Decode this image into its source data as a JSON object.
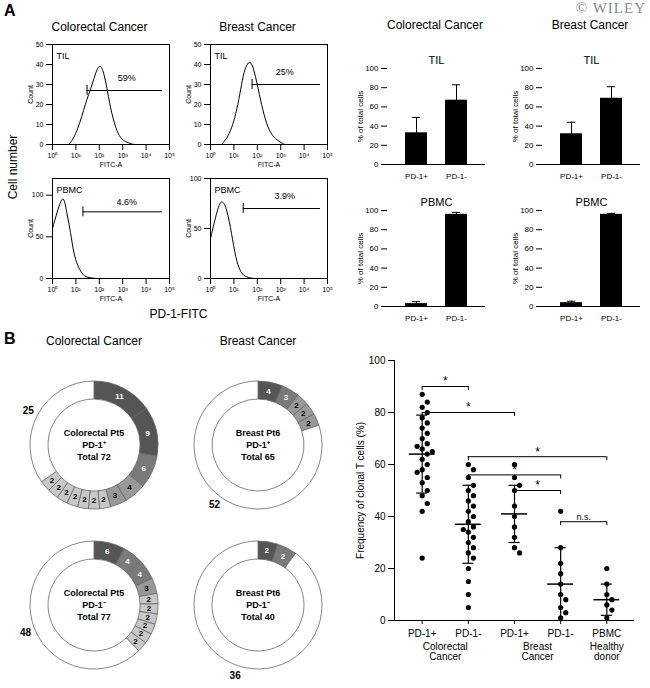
{
  "figure": {
    "panel_labels": [
      "A",
      "B"
    ],
    "watermark": "© WILEY",
    "histogram_columns": [
      "Colorectal Cancer",
      "Breast Cancer"
    ],
    "histogram_y_label": "Cell number",
    "histogram_x_label": "PD-1-FITC",
    "bar_columns": [
      "Colorectal Cancer",
      "Breast Cancer"
    ],
    "donut_columns": [
      "Colorectal Cancer",
      "Breast Cancer"
    ]
  },
  "chart_data": [
    {
      "type": "line",
      "title": "TIL",
      "color": "#000000",
      "log": "x",
      "x": [
        5,
        8,
        12,
        18,
        25,
        35,
        50,
        70,
        100,
        140,
        200,
        300,
        500,
        800,
        1500,
        3000
      ],
      "values": [
        0,
        3,
        8,
        14,
        20,
        25,
        30,
        36,
        40,
        38,
        30,
        18,
        8,
        3,
        1,
        0
      ],
      "xlim": [
        1,
        100000
      ],
      "xticks": [
        {
          "value": 1,
          "label": "10⁰"
        },
        {
          "value": 10,
          "label": "10¹"
        },
        {
          "value": 100,
          "label": "10²"
        },
        {
          "value": 1000,
          "label": "10³"
        },
        {
          "value": 10000,
          "label": "10⁴"
        },
        {
          "value": 100000,
          "label": "10⁵"
        }
      ],
      "ylim": [
        0,
        50
      ],
      "yticks": [
        0,
        10,
        20,
        30,
        40,
        50
      ],
      "x_label": "FITC-A",
      "y_label": "Count",
      "gate": {
        "x1": 30,
        "x2": 50000,
        "y": 27
      },
      "annotations": [
        {
          "text": "59%",
          "x": 1500,
          "y": 33
        }
      ]
    },
    {
      "type": "line",
      "title": "TIL",
      "color": "#000000",
      "log": "x",
      "x": [
        3,
        5,
        8,
        12,
        18,
        25,
        35,
        50,
        70,
        100,
        150,
        250,
        400,
        700,
        1500
      ],
      "values": [
        0,
        3,
        8,
        15,
        25,
        35,
        40,
        42,
        38,
        30,
        20,
        10,
        5,
        2,
        0
      ],
      "xlim": [
        1,
        100000
      ],
      "xticks": [
        {
          "value": 1,
          "label": "10⁰"
        },
        {
          "value": 10,
          "label": "10¹"
        },
        {
          "value": 100,
          "label": "10²"
        },
        {
          "value": 1000,
          "label": "10³"
        },
        {
          "value": 10000,
          "label": "10⁴"
        },
        {
          "value": 100000,
          "label": "10⁵"
        }
      ],
      "ylim": [
        0,
        50
      ],
      "yticks": [
        0,
        10,
        20,
        30,
        40,
        50
      ],
      "x_label": "FITC-A",
      "y_label": "Count",
      "gate": {
        "x1": 60,
        "x2": 50000,
        "y": 30
      },
      "annotations": [
        {
          "text": "25%",
          "x": 1500,
          "y": 36
        }
      ]
    },
    {
      "type": "line",
      "title": "PBMC",
      "color": "#000000",
      "log": "x",
      "x": [
        1,
        2,
        3,
        4,
        6,
        8,
        12,
        18,
        25,
        40,
        70
      ],
      "values": [
        60,
        90,
        100,
        80,
        55,
        30,
        15,
        6,
        2,
        1,
        0
      ],
      "xlim": [
        1,
        100000
      ],
      "xticks": [
        {
          "value": 1,
          "label": "10⁰"
        },
        {
          "value": 10,
          "label": "10¹"
        },
        {
          "value": 100,
          "label": "10²"
        },
        {
          "value": 1000,
          "label": "10³"
        },
        {
          "value": 10000,
          "label": "10⁴"
        },
        {
          "value": 100000,
          "label": "10⁵"
        }
      ],
      "ylim": [
        0,
        120
      ],
      "yticks": [
        0,
        50,
        100
      ],
      "x_label": "FITC-A",
      "y_label": "Count",
      "gate": {
        "x1": 20,
        "x2": 50000,
        "y": 80
      },
      "annotations": [
        {
          "text": "4.6%",
          "x": 1500,
          "y": 92
        }
      ]
    },
    {
      "type": "line",
      "title": "PBMC",
      "color": "#000000",
      "log": "x",
      "x": [
        1,
        2,
        3,
        5,
        8,
        12,
        18,
        25,
        40,
        70
      ],
      "values": [
        40,
        70,
        80,
        70,
        45,
        20,
        8,
        3,
        1,
        0
      ],
      "xlim": [
        1,
        100000
      ],
      "xticks": [
        {
          "value": 1,
          "label": "10⁰"
        },
        {
          "value": 10,
          "label": "10¹"
        },
        {
          "value": 100,
          "label": "10²"
        },
        {
          "value": 1000,
          "label": "10³"
        },
        {
          "value": 10000,
          "label": "10⁴"
        },
        {
          "value": 100000,
          "label": "10⁵"
        }
      ],
      "ylim": [
        0,
        100
      ],
      "yticks": [
        0,
        50,
        100
      ],
      "x_label": "FITC-A",
      "y_label": "Count",
      "gate": {
        "x1": 25,
        "x2": 50000,
        "y": 70
      },
      "annotations": [
        {
          "text": "3.9%",
          "x": 1500,
          "y": 82
        }
      ]
    },
    {
      "type": "bar",
      "title": "TIL",
      "color": "#000000",
      "categories": [
        "PD-1+",
        "PD-1-"
      ],
      "values": [
        33,
        67
      ],
      "errors": [
        16,
        16
      ],
      "ylim": [
        0,
        100
      ],
      "yticks": [
        0,
        20,
        40,
        60,
        80,
        100
      ],
      "y_label": "% of total cells"
    },
    {
      "type": "bar",
      "title": "TIL",
      "color": "#000000",
      "categories": [
        "PD-1+",
        "PD-1-"
      ],
      "values": [
        32,
        69
      ],
      "errors": [
        12,
        12
      ],
      "ylim": [
        0,
        100
      ],
      "yticks": [
        0,
        20,
        40,
        60,
        80,
        100
      ],
      "y_label": "% of total cells"
    },
    {
      "type": "bar",
      "title": "PBMC",
      "color": "#000000",
      "categories": [
        "PD-1+",
        "PD-1-"
      ],
      "values": [
        3,
        96
      ],
      "errors": [
        2,
        2
      ],
      "ylim": [
        0,
        100
      ],
      "yticks": [
        0,
        20,
        40,
        60,
        80,
        100
      ],
      "y_label": "% of total cells"
    },
    {
      "type": "bar",
      "title": "PBMC",
      "color": "#000000",
      "categories": [
        "PD-1+",
        "PD-1-"
      ],
      "values": [
        4,
        96
      ],
      "errors": [
        1.5,
        1
      ],
      "ylim": [
        0,
        100
      ],
      "yticks": [
        0,
        20,
        40,
        60,
        80,
        100
      ],
      "y_label": "% of total cells"
    },
    {
      "type": "donut",
      "center_text": [
        "Colorectal Pt5",
        "PD-1⁺",
        "Total 72"
      ],
      "data_labels": true,
      "values": [
        11,
        9,
        6,
        4,
        3,
        2,
        2,
        2,
        2,
        2,
        2,
        2,
        25
      ],
      "colors": [
        "#555555",
        "#555555",
        "#7a7a7a",
        "#999999",
        "#999999",
        "#c8c8c8",
        "#c8c8c8",
        "#c8c8c8",
        "#c8c8c8",
        "#c8c8c8",
        "#c8c8c8",
        "#c8c8c8",
        "#ffffff"
      ]
    },
    {
      "type": "donut",
      "center_text": [
        "Breast Pt6",
        "PD-1⁺",
        "Total 65"
      ],
      "data_labels": true,
      "values": [
        4,
        3,
        2,
        2,
        2,
        52
      ],
      "colors": [
        "#555555",
        "#7a7a7a",
        "#999999",
        "#999999",
        "#999999",
        "#ffffff"
      ]
    },
    {
      "type": "donut",
      "center_text": [
        "Colorectal Pt5",
        "PD-1⁻",
        "Total 77"
      ],
      "data_labels": true,
      "values": [
        6,
        4,
        4,
        3,
        2,
        2,
        2,
        2,
        2,
        2,
        48
      ],
      "colors": [
        "#555555",
        "#7a7a7a",
        "#7a7a7a",
        "#999999",
        "#c8c8c8",
        "#c8c8c8",
        "#c8c8c8",
        "#c8c8c8",
        "#c8c8c8",
        "#c8c8c8",
        "#ffffff"
      ]
    },
    {
      "type": "donut",
      "center_text": [
        "Breast Pt6",
        "PD-1⁻",
        "Total 40"
      ],
      "data_labels": true,
      "values": [
        2,
        2,
        36
      ],
      "colors": [
        "#555555",
        "#7a7a7a",
        "#ffffff"
      ]
    },
    {
      "type": "scatter",
      "color": "#000000",
      "categories": [
        "PD-1+",
        "PD-1-",
        "PD-1+",
        "PD-1-",
        "PBMC"
      ],
      "groups": [
        {
          "label": "Colorectal Cancer",
          "from": 0,
          "to": 1
        },
        {
          "label": "Breast Cancer",
          "from": 2,
          "to": 3
        },
        {
          "label": "Healthy donor",
          "from": 4,
          "to": 4
        }
      ],
      "points": [
        [
          87,
          84,
          82,
          80,
          78,
          76,
          74,
          72,
          70,
          68,
          67,
          66,
          65,
          64,
          62,
          60,
          58,
          57,
          55,
          53,
          50,
          48,
          45,
          42,
          24
        ],
        [
          60,
          58,
          55,
          52,
          50,
          48,
          46,
          44,
          42,
          40,
          38,
          36,
          35,
          34,
          32,
          30,
          28,
          26,
          24,
          20,
          15,
          10,
          5
        ],
        [
          60,
          55,
          52,
          50,
          44,
          40,
          36,
          32,
          28,
          26
        ],
        [
          42,
          28,
          22,
          18,
          14,
          10,
          8,
          5,
          3,
          1
        ],
        [
          20,
          14,
          10,
          8,
          6,
          4,
          1
        ]
      ],
      "means": [
        64,
        37,
        41,
        14,
        8
      ],
      "sd": [
        15,
        15,
        11,
        14,
        6
      ],
      "significance": [
        {
          "from": 0,
          "to": 1,
          "y": 90,
          "label": "*"
        },
        {
          "from": 0,
          "to": 2,
          "y": 80,
          "label": "*"
        },
        {
          "from": 1,
          "to": 4,
          "y": 63,
          "label": "*"
        },
        {
          "from": 1,
          "to": 3,
          "y": 56,
          "label": "*"
        },
        {
          "from": 2,
          "to": 3,
          "y": 50,
          "label": "*"
        },
        {
          "from": 3,
          "to": 4,
          "y": 38,
          "label": "n.s."
        }
      ],
      "ylim": [
        0,
        100
      ],
      "yticks": [
        0,
        20,
        40,
        60,
        80,
        100
      ],
      "y_label": "Frequency of clonal T cells (%)"
    }
  ]
}
